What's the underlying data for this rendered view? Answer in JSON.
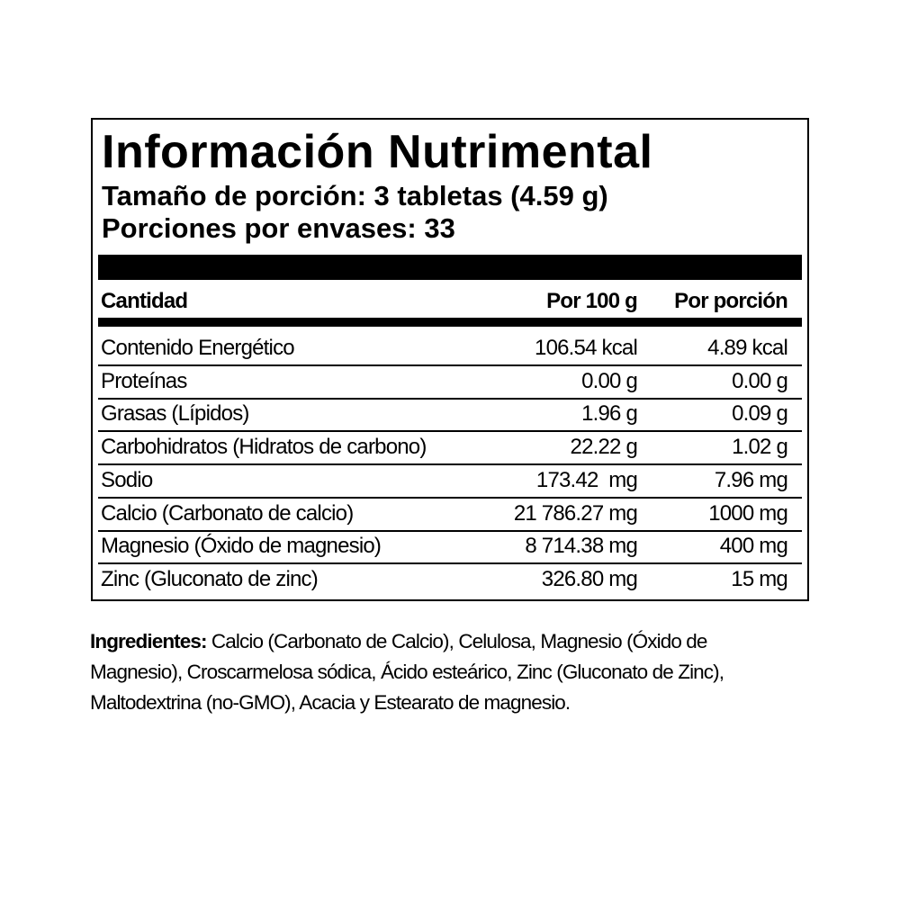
{
  "label": {
    "title": "Información Nutrimental",
    "serving_size": "Tamaño de porción: 3 tabletas (4.59 g)",
    "servings_per_container": "Porciones por envases: 33",
    "columns": [
      "Cantidad",
      "Por 100 g",
      "Por porción"
    ],
    "rows": [
      [
        "Contenido Energético",
        "106.54 kcal",
        "4.89 kcal"
      ],
      [
        "Proteínas",
        "0.00 g",
        "0.00 g"
      ],
      [
        "Grasas (Lípidos)",
        "1.96 g",
        "0.09 g"
      ],
      [
        "Carbohidratos (Hidratos de carbono)",
        "22.22 g",
        "1.02 g"
      ],
      [
        "Sodio",
        "173.42  mg",
        "7.96 mg"
      ],
      [
        "Calcio (Carbonato de calcio)",
        "21 786.27 mg",
        "1000 mg"
      ],
      [
        "Magnesio (Óxido de magnesio)",
        "8 714.38 mg",
        "400 mg"
      ],
      [
        "Zinc (Gluconato de zinc)",
        "326.80 mg",
        "15 mg"
      ]
    ]
  },
  "ingredients": {
    "label": "Ingredientes:",
    "text": " Calcio (Carbonato de Calcio), Celulosa, Magnesio (Óxido de Magnesio), Croscarmelosa sódica, Ácido esteárico, Zinc (Gluconato de Zinc), Maltodextrina (no-GMO), Acacia y Estearato de magnesio."
  }
}
